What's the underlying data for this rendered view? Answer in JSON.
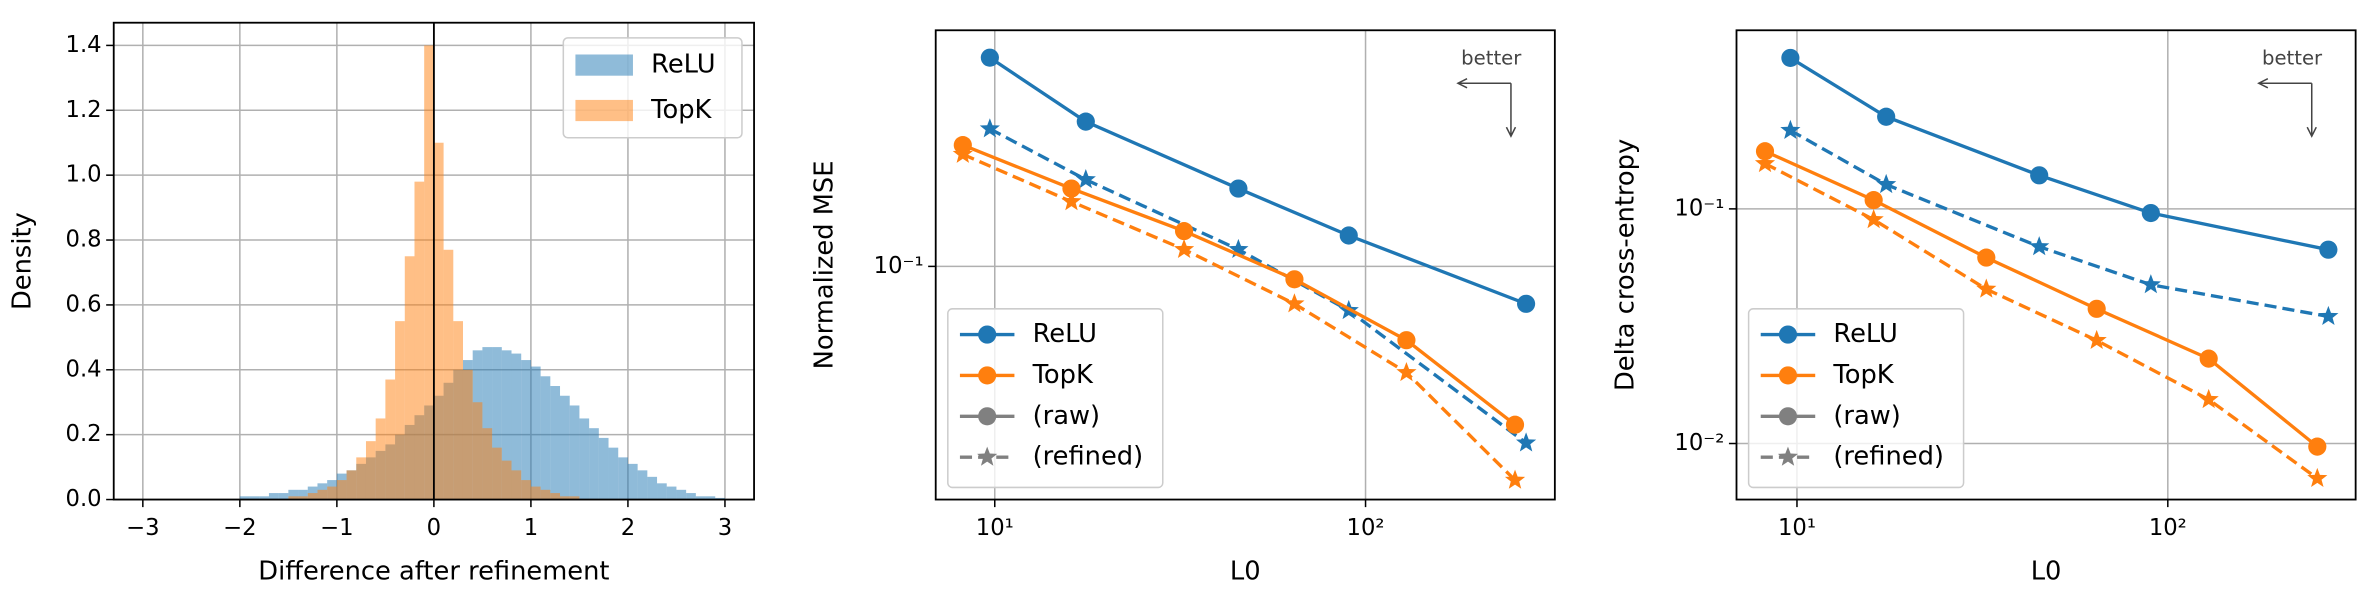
{
  "chart_data": [
    {
      "type": "histogram",
      "xlabel": "Difference after refinement",
      "ylabel": "Density",
      "bins": [
        -2,
        -1.9,
        -1.8,
        -1.7,
        -1.6,
        -1.5,
        -1.4,
        -1.3,
        -1.2,
        -1.1,
        -1,
        -0.9,
        -0.8,
        -0.7,
        -0.6,
        -0.5,
        -0.4,
        -0.3,
        -0.2,
        -0.1,
        0,
        0.1,
        0.2,
        0.3,
        0.4,
        0.5,
        0.6,
        0.7,
        0.8,
        0.9,
        1,
        1.1,
        1.2,
        1.3,
        1.4,
        1.5,
        1.6,
        1.7,
        1.8,
        1.9,
        2,
        2.1,
        2.2,
        2.3,
        2.4,
        2.5,
        2.6,
        2.7,
        2.8,
        2.9,
        3
      ],
      "series": [
        {
          "name": "ReLU",
          "color": "#1f77b4",
          "values": [
            0.01,
            0.01,
            0.01,
            0.02,
            0.02,
            0.03,
            0.03,
            0.04,
            0.05,
            0.06,
            0.08,
            0.09,
            0.11,
            0.13,
            0.15,
            0.17,
            0.2,
            0.23,
            0.26,
            0.29,
            0.32,
            0.36,
            0.4,
            0.43,
            0.46,
            0.47,
            0.47,
            0.46,
            0.45,
            0.43,
            0.41,
            0.38,
            0.35,
            0.32,
            0.29,
            0.25,
            0.22,
            0.19,
            0.16,
            0.13,
            0.11,
            0.09,
            0.07,
            0.05,
            0.04,
            0.03,
            0.02,
            0.01,
            0.01,
            0.005
          ]
        },
        {
          "name": "TopK",
          "color": "#ff7f0e",
          "values": [
            0,
            0,
            0,
            0,
            0,
            0.01,
            0.01,
            0.02,
            0.03,
            0.04,
            0.06,
            0.09,
            0.13,
            0.18,
            0.25,
            0.37,
            0.55,
            0.75,
            0.98,
            1.4,
            1.1,
            0.77,
            0.55,
            0.4,
            0.3,
            0.22,
            0.16,
            0.12,
            0.09,
            0.06,
            0.04,
            0.03,
            0.02,
            0.01,
            0.01,
            0,
            0,
            0,
            0,
            0,
            0,
            0,
            0,
            0,
            0,
            0,
            0,
            0,
            0,
            0
          ]
        }
      ],
      "alpha": 0.5,
      "vline": 0,
      "xlim": [
        -3.3,
        3.3
      ],
      "ylim": [
        0,
        1.47
      ],
      "xticks": [
        {
          "value": -3,
          "label": "−3"
        },
        {
          "value": -2,
          "label": "−2"
        },
        {
          "value": -1,
          "label": "−1"
        },
        0,
        1,
        2,
        3
      ],
      "yticks": [
        {
          "value": 0,
          "label": "0.0"
        },
        0.2,
        0.4,
        0.6,
        0.8,
        {
          "value": 1,
          "label": "1.0"
        },
        1.2,
        1.4
      ],
      "grid": true,
      "legend": "upper right"
    },
    {
      "type": "line",
      "xscale": "log",
      "yscale": "log",
      "xlabel": "L0",
      "ylabel": "Normalized MSE",
      "annotation": "better",
      "variants": [
        {
          "name": "(raw)",
          "marker": "circle",
          "dashed": false
        },
        {
          "name": "(refined)",
          "marker": "star",
          "dashed": true
        }
      ],
      "series": [
        {
          "name": "ReLU",
          "color": "#1f77b4",
          "x": [
            9.7,
            17.6,
            45.4,
            90.1,
            271
          ],
          "values": [
            [
              0.324,
              0.226,
              0.155,
              0.119,
              0.081
            ],
            [
              0.217,
              0.163,
              0.11,
              0.078,
              0.037
            ]
          ]
        },
        {
          "name": "TopK",
          "color": "#ff7f0e",
          "x": [
            8.2,
            16.1,
            32.4,
            64.3,
            128.9,
            253
          ],
          "values": [
            [
              0.198,
              0.155,
              0.122,
              0.093,
              0.066,
              0.041
            ],
            [
              0.188,
              0.144,
              0.11,
              0.081,
              0.055,
              0.03
            ]
          ]
        }
      ],
      "xlim": [
        6.93,
        324
      ],
      "ylim": [
        0.0269,
        0.378
      ],
      "xticks": [
        {
          "value": 10,
          "label": "10¹"
        },
        {
          "value": 100,
          "label": "10²"
        }
      ],
      "yticks": [
        {
          "value": 0.1,
          "label": "10⁻¹"
        }
      ],
      "grid": true,
      "legend": "lower left"
    },
    {
      "type": "line",
      "xscale": "log",
      "yscale": "log",
      "xlabel": "L0",
      "ylabel": "Delta cross-entropy",
      "annotation": "better",
      "variants": [
        {
          "name": "(raw)",
          "marker": "circle",
          "dashed": false
        },
        {
          "name": "(refined)",
          "marker": "star",
          "dashed": true
        }
      ],
      "series": [
        {
          "name": "ReLU",
          "color": "#1f77b4",
          "x": [
            9.6,
            17.4,
            45,
            90,
            271
          ],
          "values": [
            [
              0.44,
              0.247,
              0.139,
              0.096,
              0.067
            ],
            [
              0.216,
              0.127,
              0.069,
              0.0475,
              0.0348
            ]
          ]
        },
        {
          "name": "TopK",
          "color": "#ff7f0e",
          "x": [
            8.2,
            16.1,
            32.4,
            64.3,
            128.9,
            253
          ],
          "values": [
            [
              0.176,
              0.109,
              0.062,
              0.0375,
              0.023,
              0.0097
            ],
            [
              0.156,
              0.09,
              0.0455,
              0.0275,
              0.0154,
              0.0071
            ]
          ]
        }
      ],
      "xlim": [
        6.87,
        321
      ],
      "ylim": [
        0.00577,
        0.577
      ],
      "xticks": [
        {
          "value": 10,
          "label": "10¹"
        },
        {
          "value": 100,
          "label": "10²"
        }
      ],
      "yticks": [
        {
          "value": 0.1,
          "label": "10⁻¹"
        },
        {
          "value": 0.01,
          "label": "10⁻²"
        }
      ],
      "grid": true,
      "legend": "lower left"
    }
  ]
}
